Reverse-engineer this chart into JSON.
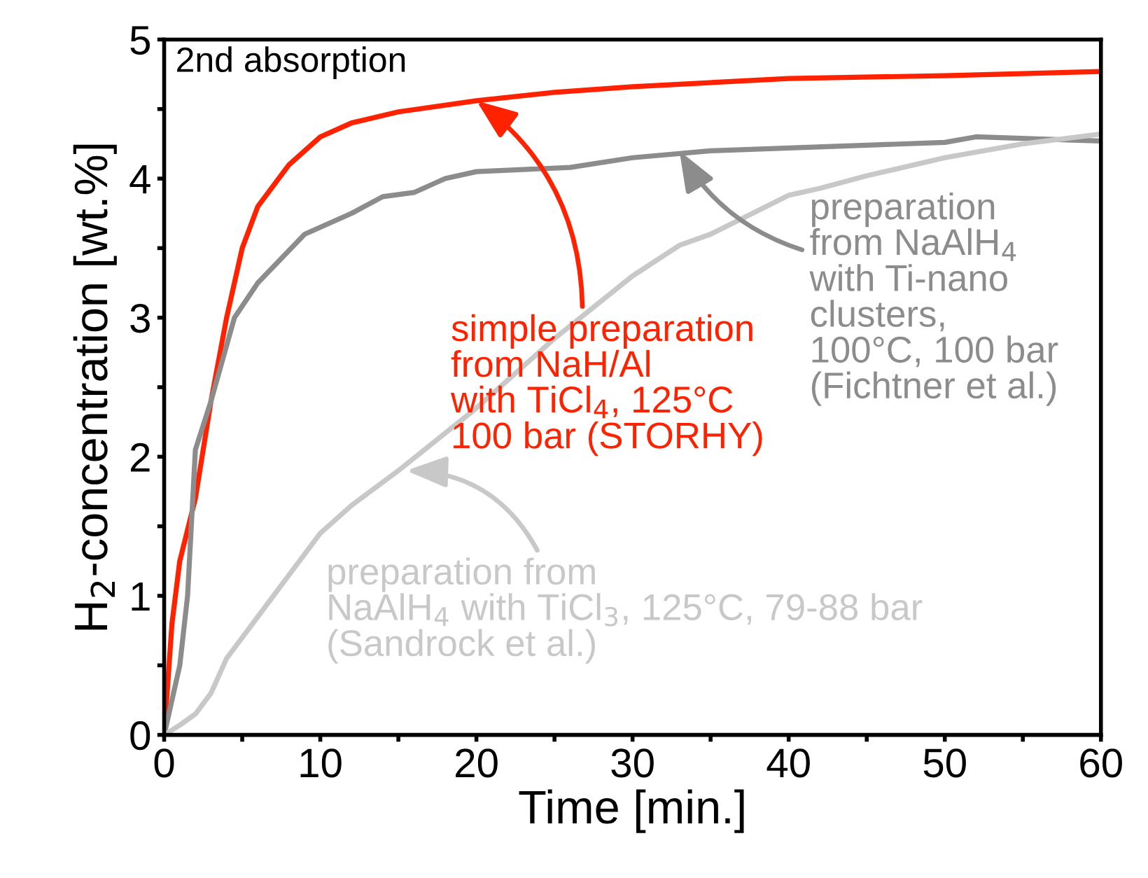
{
  "chart_data": {
    "type": "line",
    "xlabel": "Time [min.]",
    "ylabel": "H$_{2}$-concentration [wt.%]",
    "xlim": [
      0,
      60
    ],
    "ylim": [
      0,
      5
    ],
    "xticks": [
      0,
      {
        "value": 5,
        "label": null
      },
      10,
      {
        "value": 15,
        "label": null
      },
      20,
      {
        "value": 25,
        "label": null
      },
      30,
      {
        "value": 35,
        "label": null
      },
      40,
      {
        "value": 45,
        "label": null
      },
      50,
      {
        "value": 55,
        "label": null
      },
      60
    ],
    "yticks": [
      0,
      {
        "value": 0.5,
        "label": null
      },
      1,
      {
        "value": 1.5,
        "label": null
      },
      2,
      {
        "value": 2.5,
        "label": null
      },
      3,
      {
        "value": 3.5,
        "label": null
      },
      4,
      {
        "value": 4.5,
        "label": null
      },
      5
    ],
    "grid": false,
    "marker": "none",
    "line_style": "solid",
    "series": [
      {
        "color": "#ff2200",
        "x": [
          0,
          0.5,
          1,
          2,
          3,
          4,
          5,
          6,
          8,
          10,
          12,
          15,
          20,
          25,
          30,
          40,
          50,
          60
        ],
        "values": [
          0,
          0.8,
          1.25,
          1.7,
          2.4,
          3.0,
          3.5,
          3.8,
          4.1,
          4.3,
          4.4,
          4.48,
          4.56,
          4.62,
          4.66,
          4.72,
          4.74,
          4.77
        ]
      },
      {
        "color": "#8c8c8c",
        "x": [
          0,
          1,
          1.5,
          2,
          3,
          4,
          4.5,
          6,
          9,
          12,
          14,
          16,
          18,
          20,
          26,
          30,
          35,
          40,
          45,
          50,
          52,
          60
        ],
        "values": [
          0,
          0.5,
          1.0,
          2.05,
          2.4,
          2.8,
          3.0,
          3.25,
          3.6,
          3.75,
          3.87,
          3.9,
          4.0,
          4.05,
          4.08,
          4.15,
          4.2,
          4.22,
          4.24,
          4.26,
          4.3,
          4.27
        ]
      },
      {
        "color": "#c8c8c8",
        "x": [
          0,
          1,
          2,
          3,
          4,
          5,
          6,
          8,
          10,
          12,
          15,
          20,
          25,
          30,
          33,
          35,
          40,
          42,
          45,
          50,
          55,
          60
        ],
        "values": [
          0,
          0.07,
          0.15,
          0.3,
          0.55,
          0.7,
          0.85,
          1.15,
          1.45,
          1.65,
          1.9,
          2.35,
          2.85,
          3.3,
          3.52,
          3.6,
          3.88,
          3.93,
          4.02,
          4.15,
          4.25,
          4.32
        ]
      }
    ],
    "annotations": [
      {
        "text": "simple preparation\nfrom NaH/Al\nwith TiCl$_{4}$, 125°C\n100 bar (STORHY)",
        "x": 20,
        "y": 4.56
      },
      {
        "text": "preparation\nfrom NaAlH$_{4}$\nwith Ti-nano\nclusters,\n100°C, 100 bar\n(Fichtner et al.)",
        "x": 33,
        "y": 4.2
      },
      {
        "text": "preparation from\nNaAlH$_{4}$ with TiCl$_{3}$, 125°C, 79-88 bar\n(Sandrock et al.)",
        "x": 15.5,
        "y": 1.9
      },
      "2nd absorption"
    ]
  }
}
